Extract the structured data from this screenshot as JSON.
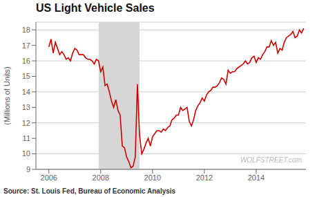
{
  "chart_data": {
    "type": "line",
    "title": "US Light Vehicle Sales",
    "ylabel": "(Millions of Units)",
    "source": "Source: St. Louis Fed, Bureau of Economic Analysis",
    "watermark": "WOLFSTREET.com",
    "color": "#cc0000",
    "recession": {
      "start": 2007.92,
      "end": 2009.5,
      "color": "#d6d6d6"
    },
    "grid": "y",
    "xlim": [
      2005.5,
      2015.92
    ],
    "ylim": [
      9.0,
      18.5
    ],
    "xticks": [
      2006,
      2008,
      2010,
      2012,
      2014
    ],
    "yticks": [
      9,
      10,
      11,
      12,
      13,
      14,
      15,
      16,
      17,
      18
    ],
    "x": [
      2006.0,
      2006.083,
      2006.167,
      2006.25,
      2006.333,
      2006.417,
      2006.5,
      2006.583,
      2006.667,
      2006.75,
      2006.833,
      2006.917,
      2007.0,
      2007.083,
      2007.167,
      2007.25,
      2007.333,
      2007.417,
      2007.5,
      2007.583,
      2007.667,
      2007.75,
      2007.833,
      2007.917,
      2008.0,
      2008.083,
      2008.167,
      2008.25,
      2008.333,
      2008.417,
      2008.5,
      2008.583,
      2008.667,
      2008.75,
      2008.833,
      2008.917,
      2009.0,
      2009.083,
      2009.167,
      2009.25,
      2009.333,
      2009.417,
      2009.5,
      2009.583,
      2009.667,
      2009.75,
      2009.833,
      2009.917,
      2010.0,
      2010.083,
      2010.167,
      2010.25,
      2010.333,
      2010.417,
      2010.5,
      2010.583,
      2010.667,
      2010.75,
      2010.833,
      2010.917,
      2011.0,
      2011.083,
      2011.167,
      2011.25,
      2011.333,
      2011.417,
      2011.5,
      2011.583,
      2011.667,
      2011.75,
      2011.833,
      2011.917,
      2012.0,
      2012.083,
      2012.167,
      2012.25,
      2012.333,
      2012.417,
      2012.5,
      2012.583,
      2012.667,
      2012.75,
      2012.833,
      2012.917,
      2013.0,
      2013.083,
      2013.167,
      2013.25,
      2013.333,
      2013.417,
      2013.5,
      2013.583,
      2013.667,
      2013.75,
      2013.833,
      2013.917,
      2014.0,
      2014.083,
      2014.167,
      2014.25,
      2014.333,
      2014.417,
      2014.5,
      2014.583,
      2014.667,
      2014.75,
      2014.833,
      2014.917,
      2015.0,
      2015.083,
      2015.167,
      2015.25,
      2015.333,
      2015.417,
      2015.5,
      2015.583,
      2015.667,
      2015.75,
      2015.833
    ],
    "values": [
      16.9,
      17.4,
      16.5,
      17.2,
      16.8,
      16.4,
      16.6,
      16.4,
      16.1,
      16.2,
      16.0,
      16.5,
      16.8,
      16.7,
      16.4,
      16.4,
      16.4,
      16.2,
      16.1,
      16.1,
      16.0,
      15.8,
      16.1,
      16.0,
      15.3,
      15.6,
      14.4,
      14.5,
      14.0,
      13.4,
      13.0,
      13.5,
      12.8,
      12.5,
      10.5,
      10.4,
      9.8,
      9.5,
      9.1,
      9.2,
      9.8,
      14.5,
      11.2,
      10.0,
      10.3,
      10.7,
      11.0,
      10.5,
      11.1,
      11.3,
      11.5,
      11.5,
      11.4,
      11.6,
      11.5,
      11.7,
      11.8,
      12.2,
      12.3,
      12.5,
      12.5,
      13.0,
      12.8,
      12.9,
      13.0,
      12.1,
      11.8,
      12.2,
      12.8,
      13.1,
      13.3,
      13.6,
      13.4,
      13.8,
      14.0,
      14.1,
      14.3,
      14.3,
      14.4,
      14.6,
      14.9,
      14.8,
      14.5,
      15.4,
      15.2,
      15.3,
      15.3,
      15.5,
      15.6,
      15.7,
      15.8,
      16.0,
      15.8,
      15.9,
      16.2,
      16.3,
      15.9,
      16.2,
      16.1,
      16.4,
      16.6,
      16.9,
      16.9,
      17.3,
      17.0,
      17.2,
      16.5,
      16.8,
      16.7,
      17.2,
      17.5,
      17.6,
      17.7,
      17.9,
      17.5,
      17.6,
      18.0,
      17.8,
      18.1
    ]
  }
}
